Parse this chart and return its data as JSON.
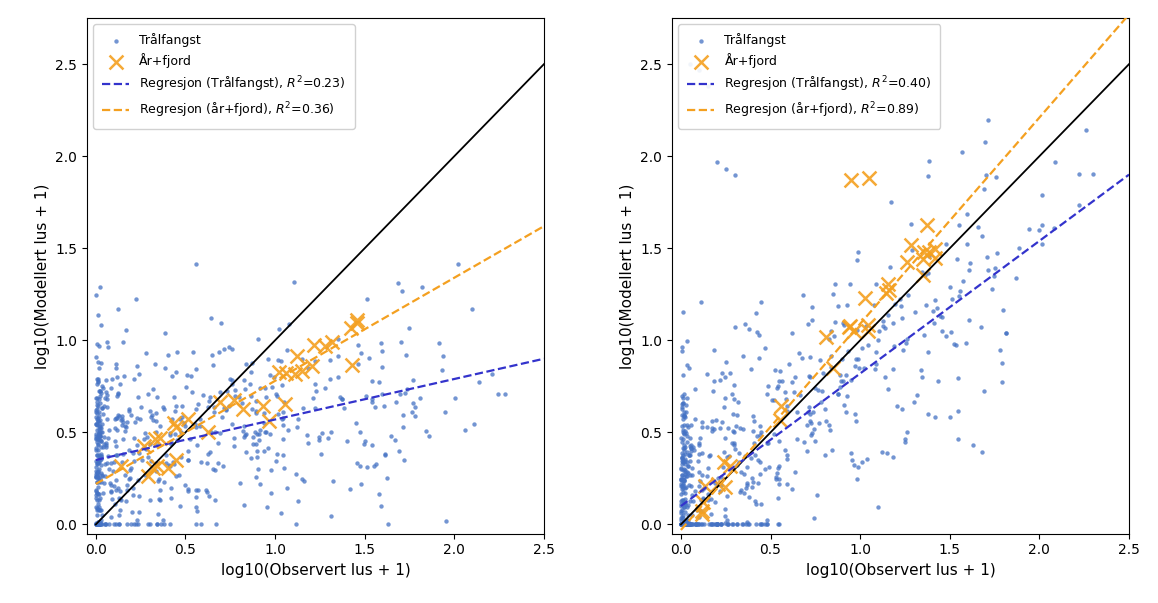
{
  "xlabel": "log10(Observert lus + 1)",
  "ylabel": "log10(Modellert lus + 1)",
  "xlim": [
    -0.05,
    2.5
  ],
  "ylim": [
    -0.05,
    2.75
  ],
  "xticks": [
    0.0,
    0.5,
    1.0,
    1.5,
    2.0,
    2.5
  ],
  "yticks": [
    0.0,
    0.5,
    1.0,
    1.5,
    2.0,
    2.5
  ],
  "dot_color": "#4472c4",
  "cross_color": "#f4a020",
  "line1_1_color": "black",
  "reg_trawl_color": "#3333cc",
  "reg_fjord_color": "#f4a020",
  "legend_trawl": "Trålfangst",
  "legend_fjord": "År+fjord",
  "panel1": {
    "reg_trawl_r2": "0.23",
    "reg_fjord_r2": "0.36",
    "reg_trawl_slope": 0.22,
    "reg_trawl_intercept": 0.35,
    "reg_fjord_slope": 0.56,
    "reg_fjord_intercept": 0.22
  },
  "panel2": {
    "reg_trawl_r2": "0.40",
    "reg_fjord_r2": "0.89",
    "reg_trawl_slope": 0.72,
    "reg_trawl_intercept": 0.1,
    "reg_fjord_slope": 1.12,
    "reg_fjord_intercept": -0.03
  },
  "dot_size": 10,
  "dot_alpha": 0.75,
  "cross_size": 100,
  "cross_lw": 1.8,
  "cross_alpha": 0.9,
  "figsize": [
    11.58,
    6.03
  ],
  "dpi": 100
}
